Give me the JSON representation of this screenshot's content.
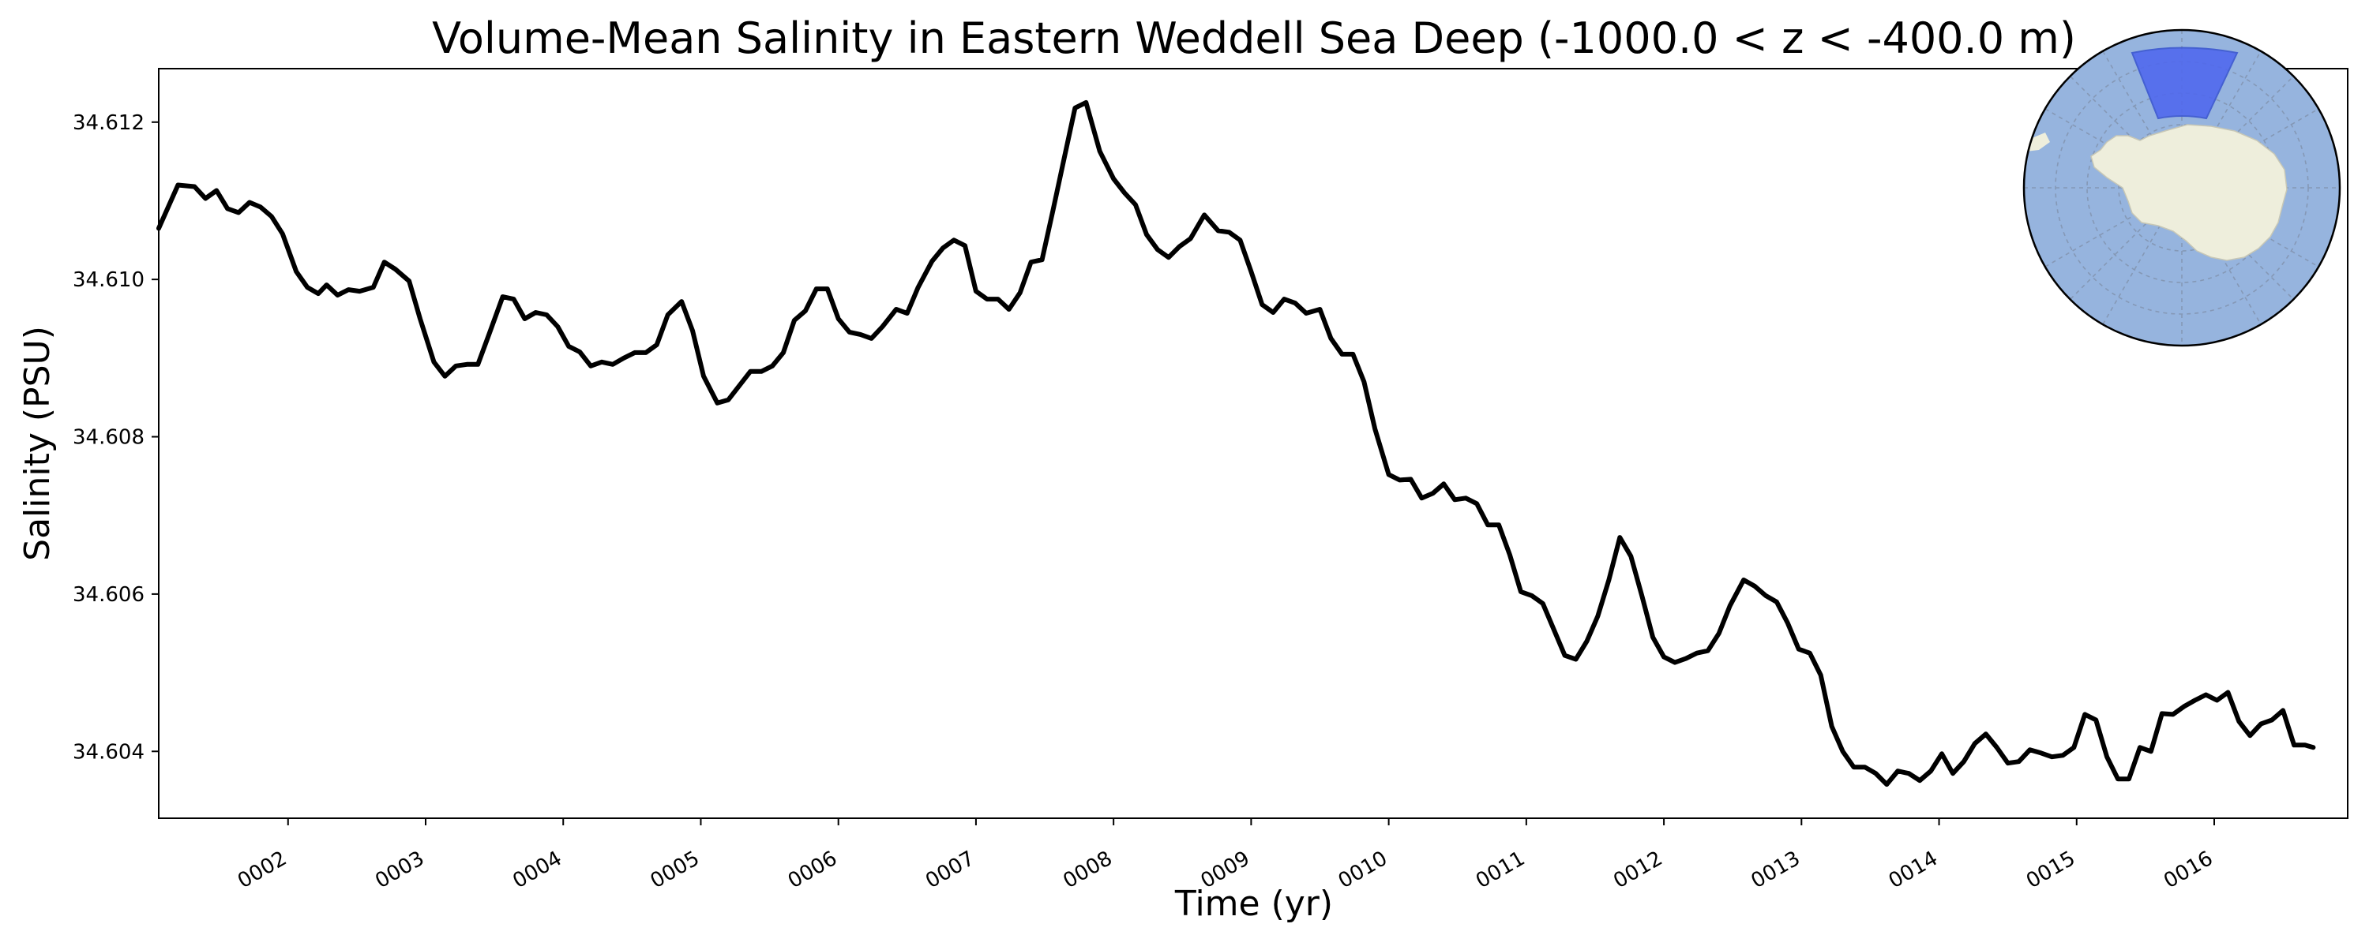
{
  "chart_data": {
    "type": "line",
    "title": "Volume-Mean Salinity in Eastern Weddell Sea Deep (-1000.0 < z < -400.0 m)",
    "xlabel": "Time (yr)",
    "ylabel": "Salinity (PSU)",
    "xlim": [
      1.06,
      16.97
    ],
    "ylim": [
      34.60315,
      34.61268
    ],
    "x_ticks": [
      2,
      3,
      4,
      5,
      6,
      7,
      8,
      9,
      10,
      11,
      12,
      13,
      14,
      15,
      16
    ],
    "x_tick_labels": [
      "0002",
      "0003",
      "0004",
      "0005",
      "0006",
      "0007",
      "0008",
      "0009",
      "0010",
      "0011",
      "0012",
      "0013",
      "0014",
      "0015",
      "0016"
    ],
    "y_ticks": [
      34.604,
      34.606,
      34.608,
      34.61,
      34.612
    ],
    "y_tick_labels": [
      "34.604",
      "34.606",
      "34.608",
      "34.610",
      "34.612"
    ],
    "grid": false,
    "line_color": "#000000",
    "series": [
      {
        "values": [
          [
            1.06,
            34.61065
          ],
          [
            1.2,
            34.6112
          ],
          [
            1.32,
            34.61118
          ],
          [
            1.4,
            34.61103
          ],
          [
            1.48,
            34.61113
          ],
          [
            1.56,
            34.6109
          ],
          [
            1.64,
            34.61085
          ],
          [
            1.72,
            34.61098
          ],
          [
            1.8,
            34.61092
          ],
          [
            1.88,
            34.6108
          ],
          [
            1.96,
            34.61058
          ],
          [
            2.06,
            34.6101
          ],
          [
            2.14,
            34.6099
          ],
          [
            2.22,
            34.60982
          ],
          [
            2.28,
            34.60993
          ],
          [
            2.36,
            34.6098
          ],
          [
            2.44,
            34.60987
          ],
          [
            2.52,
            34.60985
          ],
          [
            2.62,
            34.6099
          ],
          [
            2.7,
            34.61022
          ],
          [
            2.78,
            34.61013
          ],
          [
            2.88,
            34.60998
          ],
          [
            2.96,
            34.6095
          ],
          [
            3.06,
            34.60895
          ],
          [
            3.14,
            34.60877
          ],
          [
            3.22,
            34.6089
          ],
          [
            3.3,
            34.60892
          ],
          [
            3.38,
            34.60892
          ],
          [
            3.46,
            34.6093
          ],
          [
            3.56,
            34.60978
          ],
          [
            3.64,
            34.60975
          ],
          [
            3.72,
            34.6095
          ],
          [
            3.8,
            34.60958
          ],
          [
            3.88,
            34.60955
          ],
          [
            3.96,
            34.6094
          ],
          [
            4.04,
            34.60915
          ],
          [
            4.12,
            34.60908
          ],
          [
            4.2,
            34.6089
          ],
          [
            4.28,
            34.60895
          ],
          [
            4.36,
            34.60892
          ],
          [
            4.44,
            34.609
          ],
          [
            4.52,
            34.60907
          ],
          [
            4.6,
            34.60907
          ],
          [
            4.68,
            34.60917
          ],
          [
            4.76,
            34.60955
          ],
          [
            4.86,
            34.60972
          ],
          [
            4.94,
            34.60935
          ],
          [
            5.02,
            34.60877
          ],
          [
            5.12,
            34.60843
          ],
          [
            5.2,
            34.60847
          ],
          [
            5.28,
            34.60865
          ],
          [
            5.36,
            34.60883
          ],
          [
            5.44,
            34.60883
          ],
          [
            5.52,
            34.6089
          ],
          [
            5.6,
            34.60907
          ],
          [
            5.68,
            34.60948
          ],
          [
            5.76,
            34.6096
          ],
          [
            5.84,
            34.60988
          ],
          [
            5.92,
            34.60988
          ],
          [
            6.0,
            34.6095
          ],
          [
            6.08,
            34.60933
          ],
          [
            6.16,
            34.6093
          ],
          [
            6.24,
            34.60925
          ],
          [
            6.32,
            34.6094
          ],
          [
            6.42,
            34.60962
          ],
          [
            6.5,
            34.60957
          ],
          [
            6.58,
            34.6099
          ],
          [
            6.68,
            34.61023
          ],
          [
            6.76,
            34.6104
          ],
          [
            6.84,
            34.6105
          ],
          [
            6.92,
            34.61043
          ],
          [
            7.0,
            34.60985
          ],
          [
            7.08,
            34.60975
          ],
          [
            7.16,
            34.60975
          ],
          [
            7.24,
            34.60962
          ],
          [
            7.32,
            34.60983
          ],
          [
            7.4,
            34.61022
          ],
          [
            7.48,
            34.61025
          ],
          [
            7.56,
            34.61088
          ],
          [
            7.64,
            34.61153
          ],
          [
            7.72,
            34.61218
          ],
          [
            7.8,
            34.61225
          ],
          [
            7.9,
            34.61163
          ],
          [
            8.0,
            34.61128
          ],
          [
            8.08,
            34.6111
          ],
          [
            8.16,
            34.61095
          ],
          [
            8.24,
            34.61057
          ],
          [
            8.32,
            34.61038
          ],
          [
            8.4,
            34.61028
          ],
          [
            8.48,
            34.61042
          ],
          [
            8.56,
            34.61052
          ],
          [
            8.66,
            34.61082
          ],
          [
            8.76,
            34.61062
          ],
          [
            8.84,
            34.6106
          ],
          [
            8.92,
            34.6105
          ],
          [
            9.0,
            34.6101
          ],
          [
            9.08,
            34.60968
          ],
          [
            9.16,
            34.60958
          ],
          [
            9.24,
            34.60975
          ],
          [
            9.32,
            34.6097
          ],
          [
            9.4,
            34.60957
          ],
          [
            9.5,
            34.60962
          ],
          [
            9.58,
            34.60925
          ],
          [
            9.66,
            34.60905
          ],
          [
            9.74,
            34.60905
          ],
          [
            9.82,
            34.6087
          ],
          [
            9.9,
            34.6081
          ],
          [
            10.0,
            34.60752
          ],
          [
            10.08,
            34.60745
          ],
          [
            10.16,
            34.60746
          ],
          [
            10.24,
            34.60722
          ],
          [
            10.32,
            34.60728
          ],
          [
            10.4,
            34.6074
          ],
          [
            10.48,
            34.6072
          ],
          [
            10.56,
            34.60722
          ],
          [
            10.64,
            34.60715
          ],
          [
            10.72,
            34.60688
          ],
          [
            10.8,
            34.60688
          ],
          [
            10.88,
            34.6065
          ],
          [
            10.96,
            34.60603
          ],
          [
            11.04,
            34.60598
          ],
          [
            11.12,
            34.60588
          ],
          [
            11.2,
            34.60555
          ],
          [
            11.28,
            34.60522
          ],
          [
            11.36,
            34.60517
          ],
          [
            11.44,
            34.6054
          ],
          [
            11.52,
            34.60572
          ],
          [
            11.6,
            34.60618
          ],
          [
            11.68,
            34.60672
          ],
          [
            11.76,
            34.60648
          ],
          [
            11.84,
            34.60598
          ],
          [
            11.92,
            34.60545
          ],
          [
            12.0,
            34.6052
          ],
          [
            12.08,
            34.60513
          ],
          [
            12.16,
            34.60518
          ],
          [
            12.24,
            34.60525
          ],
          [
            12.32,
            34.60528
          ],
          [
            12.4,
            34.6055
          ],
          [
            12.48,
            34.60585
          ],
          [
            12.58,
            34.60618
          ],
          [
            12.66,
            34.6061
          ],
          [
            12.74,
            34.60598
          ],
          [
            12.82,
            34.6059
          ],
          [
            12.9,
            34.60563
          ],
          [
            12.98,
            34.6053
          ],
          [
            13.06,
            34.60525
          ],
          [
            13.14,
            34.60497
          ],
          [
            13.22,
            34.60432
          ],
          [
            13.3,
            34.604
          ],
          [
            13.38,
            34.6038
          ],
          [
            13.46,
            34.6038
          ],
          [
            13.54,
            34.60372
          ],
          [
            13.62,
            34.60358
          ],
          [
            13.7,
            34.60375
          ],
          [
            13.78,
            34.60372
          ],
          [
            13.86,
            34.60363
          ],
          [
            13.94,
            34.60375
          ],
          [
            14.02,
            34.60397
          ],
          [
            14.1,
            34.60372
          ],
          [
            14.18,
            34.60387
          ],
          [
            14.26,
            34.6041
          ],
          [
            14.34,
            34.60422
          ],
          [
            14.42,
            34.60405
          ],
          [
            14.5,
            34.60385
          ],
          [
            14.58,
            34.60387
          ],
          [
            14.66,
            34.60402
          ],
          [
            14.74,
            34.60398
          ],
          [
            14.82,
            34.60393
          ],
          [
            14.9,
            34.60395
          ],
          [
            14.98,
            34.60405
          ],
          [
            15.06,
            34.60447
          ],
          [
            15.14,
            34.6044
          ],
          [
            15.22,
            34.60393
          ],
          [
            15.3,
            34.60365
          ],
          [
            15.38,
            34.60365
          ],
          [
            15.46,
            34.60405
          ],
          [
            15.54,
            34.604
          ],
          [
            15.62,
            34.60448
          ],
          [
            15.7,
            34.60447
          ],
          [
            15.78,
            34.60457
          ],
          [
            15.86,
            34.60465
          ],
          [
            15.94,
            34.60472
          ],
          [
            16.02,
            34.60465
          ],
          [
            16.1,
            34.60475
          ],
          [
            16.18,
            34.60438
          ],
          [
            16.26,
            34.6042
          ],
          [
            16.34,
            34.60435
          ],
          [
            16.42,
            34.6044
          ],
          [
            16.5,
            34.60452
          ],
          [
            16.58,
            34.60408
          ],
          [
            16.66,
            34.60408
          ],
          [
            16.72,
            34.60405
          ]
        ]
      }
    ]
  },
  "inset_map": {
    "projection": "south-polar",
    "ocean_color": "#96b4de",
    "land_color": "#eeeedc",
    "highlight_color": "#4f67ee",
    "highlight_region": "Eastern Weddell Sea"
  }
}
